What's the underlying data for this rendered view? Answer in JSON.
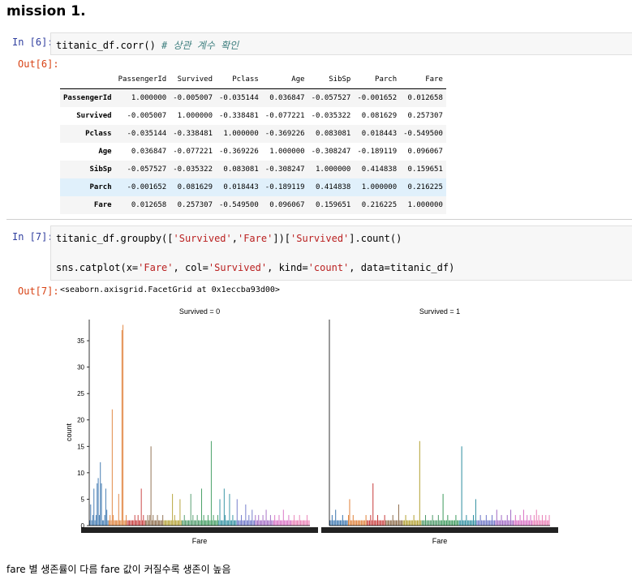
{
  "heading": "mission 1.",
  "cells": [
    {
      "in_prompt": "In [6]:",
      "code_plain": "titanic_df.corr() ",
      "code_comment": "# 상관 계수 확인",
      "out_prompt": "Out[6]:"
    },
    {
      "in_prompt": "In [7]:",
      "line1": {
        "a": "titanic_df.groupby([",
        "s1": "'Survived'",
        "b": ",",
        "s2": "'Fare'",
        "c": "])[",
        "s3": "'Survived'",
        "d": "].count()"
      },
      "line2": {
        "a": "sns.catplot(x=",
        "s1": "'Fare'",
        "b": ", col=",
        "s2": "'Survived'",
        "c": ", kind=",
        "s3": "'count'",
        "d": ", data=titanic_df)"
      },
      "out_prompt": "Out[7]:",
      "repr": "<seaborn.axisgrid.FacetGrid at 0x1eccba93d00>"
    }
  ],
  "corr_table": {
    "columns": [
      "PassengerId",
      "Survived",
      "Pclass",
      "Age",
      "SibSp",
      "Parch",
      "Fare"
    ],
    "rows": [
      {
        "label": "PassengerId",
        "values": [
          "1.000000",
          "-0.005007",
          "-0.035144",
          "0.036847",
          "-0.057527",
          "-0.001652",
          "0.012658"
        ]
      },
      {
        "label": "Survived",
        "values": [
          "-0.005007",
          "1.000000",
          "-0.338481",
          "-0.077221",
          "-0.035322",
          "0.081629",
          "0.257307"
        ]
      },
      {
        "label": "Pclass",
        "values": [
          "-0.035144",
          "-0.338481",
          "1.000000",
          "-0.369226",
          "0.083081",
          "0.018443",
          "-0.549500"
        ]
      },
      {
        "label": "Age",
        "values": [
          "0.036847",
          "-0.077221",
          "-0.369226",
          "1.000000",
          "-0.308247",
          "-0.189119",
          "0.096067"
        ]
      },
      {
        "label": "SibSp",
        "values": [
          "-0.057527",
          "-0.035322",
          "0.083081",
          "-0.308247",
          "1.000000",
          "0.414838",
          "0.159651"
        ]
      },
      {
        "label": "Parch",
        "values": [
          "-0.001652",
          "0.081629",
          "0.018443",
          "-0.189119",
          "0.414838",
          "1.000000",
          "0.216225"
        ]
      },
      {
        "label": "Fare",
        "values": [
          "0.012658",
          "0.257307",
          "-0.549500",
          "0.096067",
          "0.159651",
          "0.216225",
          "1.000000"
        ]
      }
    ],
    "highlight_row": "Parch"
  },
  "chart_data": [
    {
      "type": "bar",
      "title": "Survived = 0",
      "xlabel": "Fare",
      "ylabel": "count",
      "ylim": [
        0,
        39
      ],
      "yticks": [
        0,
        5,
        10,
        15,
        20,
        25,
        30,
        35
      ],
      "values": [
        1,
        4,
        1,
        2,
        7,
        1,
        2,
        8,
        9,
        2,
        12,
        8,
        1,
        1,
        2,
        7,
        3,
        1,
        1,
        2,
        1,
        22,
        2,
        1,
        1,
        1,
        1,
        6,
        1,
        1,
        37,
        38,
        1,
        1,
        2,
        1,
        1,
        1,
        1,
        1,
        1,
        1,
        2,
        1,
        1,
        2,
        1,
        1,
        7,
        1,
        2,
        1,
        1,
        1,
        2,
        1,
        2,
        15,
        1,
        2,
        1,
        1,
        1,
        2,
        1,
        1,
        1,
        1,
        2,
        1,
        1,
        1,
        1,
        1,
        1,
        1,
        1,
        6,
        1,
        2,
        1,
        1,
        1,
        1,
        5,
        1,
        1,
        1,
        2,
        1,
        1,
        1,
        1,
        1,
        6,
        1,
        2,
        1,
        1,
        1,
        2,
        1,
        1,
        1,
        7,
        1,
        2,
        1,
        1,
        1,
        2,
        1,
        1,
        16,
        1,
        2,
        1,
        1,
        1,
        2,
        1,
        5,
        1,
        1,
        1,
        7,
        2,
        1,
        1,
        1,
        6,
        1,
        1,
        2,
        1,
        1,
        1,
        5,
        1,
        1,
        1,
        2,
        1,
        1,
        1,
        4,
        1,
        1,
        2,
        1,
        1,
        3,
        1,
        1,
        2,
        1,
        1,
        2,
        1,
        1,
        1,
        2,
        1,
        1,
        3,
        1,
        1,
        1,
        2,
        1,
        1,
        1,
        2,
        1,
        1,
        1,
        2,
        1,
        1,
        1,
        3,
        1,
        1,
        1,
        1,
        2,
        1,
        1,
        1,
        1,
        2,
        1,
        1,
        1,
        1,
        2,
        1,
        1,
        1,
        1,
        1,
        1,
        2,
        1,
        1
      ],
      "palette": [
        "#3b76af",
        "#e0813a",
        "#c83d3d",
        "#8c6b4a",
        "#b3a134",
        "#4e9a6a",
        "#3e9a5e",
        "#2f8fa0",
        "#6d76c8",
        "#a26bc4",
        "#d86fc4",
        "#e97fb6"
      ]
    },
    {
      "type": "bar",
      "title": "Survived = 1",
      "xlabel": "Fare",
      "ylabel": "",
      "ylim": [
        0,
        39
      ],
      "values": [
        1,
        1,
        2,
        1,
        1,
        3,
        1,
        1,
        1,
        1,
        1,
        2,
        1,
        1,
        1,
        1,
        2,
        5,
        1,
        1,
        2,
        1,
        1,
        1,
        1,
        1,
        1,
        1,
        1,
        1,
        1,
        2,
        1,
        1,
        1,
        2,
        1,
        8,
        1,
        1,
        1,
        2,
        1,
        1,
        1,
        1,
        1,
        2,
        1,
        1,
        1,
        1,
        1,
        1,
        2,
        1,
        1,
        1,
        1,
        4,
        1,
        1,
        1,
        1,
        1,
        2,
        1,
        1,
        1,
        1,
        1,
        1,
        2,
        1,
        1,
        1,
        1,
        16,
        1,
        1,
        1,
        1,
        2,
        1,
        1,
        1,
        1,
        1,
        2,
        1,
        1,
        1,
        1,
        2,
        1,
        1,
        1,
        6,
        1,
        1,
        1,
        2,
        1,
        1,
        1,
        1,
        1,
        1,
        2,
        1,
        1,
        1,
        1,
        15,
        1,
        1,
        1,
        2,
        1,
        1,
        1,
        1,
        1,
        2,
        1,
        5,
        1,
        1,
        1,
        2,
        1,
        1,
        1,
        1,
        2,
        1,
        1,
        1,
        1,
        2,
        1,
        1,
        1,
        3,
        1,
        1,
        1,
        2,
        1,
        1,
        1,
        1,
        2,
        1,
        1,
        3,
        1,
        1,
        1,
        2,
        1,
        1,
        1,
        2,
        1,
        1,
        3,
        1,
        1,
        2,
        1,
        1,
        2,
        1,
        1,
        2,
        1,
        3,
        1,
        2,
        1,
        1,
        2,
        1,
        1,
        2,
        1,
        1,
        2
      ],
      "palette": [
        "#3b76af",
        "#e0813a",
        "#c83d3d",
        "#8c6b4a",
        "#b3a134",
        "#4e9a6a",
        "#3e9a5e",
        "#2f8fa0",
        "#6d76c8",
        "#a26bc4",
        "#d86fc4",
        "#e97fb6"
      ]
    }
  ],
  "footer_text": "fare 별 생존률이 다름 fare 값이 커질수록 생존이 높음"
}
